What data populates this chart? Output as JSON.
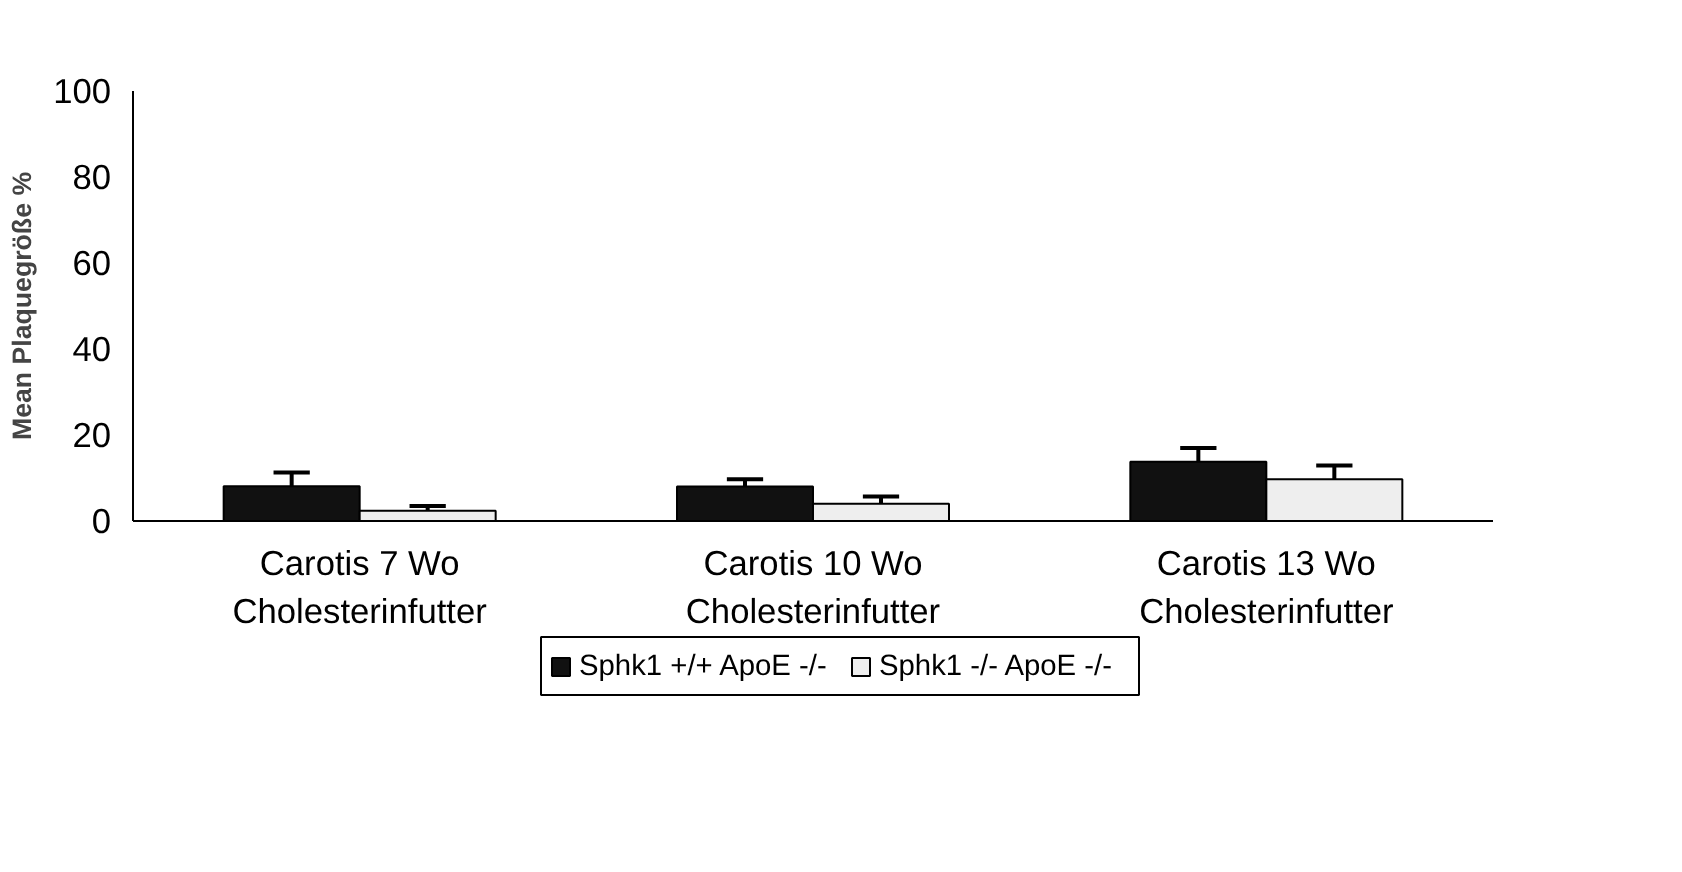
{
  "chart_data": {
    "type": "bar",
    "ylabel": "Mean Plaquegröße %",
    "categories": [
      "Carotis 7 Wo\nCholesterinfutter",
      "Carotis 10 Wo\nCholesterinfutter",
      "Carotis 13 Wo\nCholesterinfutter"
    ],
    "series": [
      {
        "name": "Sphk1 +/+ ApoE -/-",
        "color": "#111111",
        "values": [
          8.1,
          8.0,
          13.8
        ],
        "errors": [
          [
            8.1,
            11.3
          ],
          [
            8.0,
            9.7
          ],
          [
            13.8,
            17.0
          ]
        ]
      },
      {
        "name": "Sphk1 -/- ApoE -/-",
        "color": "#eeeeee",
        "values": [
          2.4,
          4.0,
          9.7
        ],
        "errors": [
          [
            2.4,
            3.5
          ],
          [
            4.0,
            5.7
          ],
          [
            9.7,
            12.9
          ]
        ]
      }
    ],
    "ylim": [
      0,
      100
    ],
    "yticks": [
      0,
      20,
      40,
      60,
      80,
      100
    ],
    "grid": false,
    "legend": "bottom"
  }
}
